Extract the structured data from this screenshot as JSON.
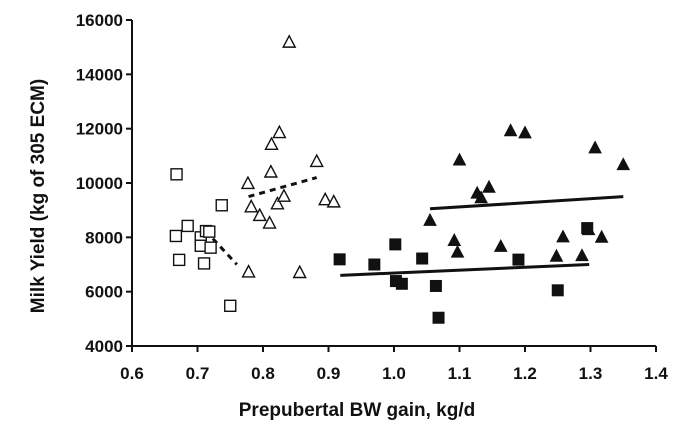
{
  "chart_data": {
    "type": "scatter",
    "title": "",
    "xlabel": "Prepubertal BW gain, kg/d",
    "ylabel": "Milk Yield (kg of 305 ECM)",
    "xlim": [
      0.6,
      1.4
    ],
    "ylim": [
      4000,
      16000
    ],
    "x_ticks": [
      0.6,
      0.7,
      0.8,
      0.9,
      1.0,
      1.1,
      1.2,
      1.3,
      1.4
    ],
    "x_tick_labels": [
      "0.6",
      "0.7",
      "0.8",
      "0.9",
      "1.0",
      "1.1",
      "1.2",
      "1.3",
      "1.4"
    ],
    "y_ticks": [
      4000,
      6000,
      8000,
      10000,
      12000,
      14000,
      16000
    ],
    "y_tick_labels": [
      "4000",
      "6000",
      "8000",
      "10000",
      "12000",
      "14000",
      "16000"
    ],
    "grid": false,
    "legend": "none",
    "color": "#111111",
    "series": [
      {
        "marker": "open-square",
        "points": [
          {
            "x": 0.668,
            "y": 10320
          },
          {
            "x": 0.667,
            "y": 8050
          },
          {
            "x": 0.672,
            "y": 7170
          },
          {
            "x": 0.685,
            "y": 8420
          },
          {
            "x": 0.705,
            "y": 8000
          },
          {
            "x": 0.705,
            "y": 7690
          },
          {
            "x": 0.71,
            "y": 7040
          },
          {
            "x": 0.713,
            "y": 8230
          },
          {
            "x": 0.718,
            "y": 8210
          },
          {
            "x": 0.72,
            "y": 7620
          },
          {
            "x": 0.737,
            "y": 9180
          },
          {
            "x": 0.75,
            "y": 5480
          }
        ]
      },
      {
        "marker": "open-triangle",
        "points": [
          {
            "x": 0.777,
            "y": 9980
          },
          {
            "x": 0.778,
            "y": 6720
          },
          {
            "x": 0.782,
            "y": 9120
          },
          {
            "x": 0.795,
            "y": 8800
          },
          {
            "x": 0.81,
            "y": 8520
          },
          {
            "x": 0.812,
            "y": 10400
          },
          {
            "x": 0.813,
            "y": 11420
          },
          {
            "x": 0.822,
            "y": 9230
          },
          {
            "x": 0.825,
            "y": 11850
          },
          {
            "x": 0.832,
            "y": 9510
          },
          {
            "x": 0.84,
            "y": 15180
          },
          {
            "x": 0.856,
            "y": 6700
          },
          {
            "x": 0.882,
            "y": 10790
          },
          {
            "x": 0.895,
            "y": 9380
          },
          {
            "x": 0.908,
            "y": 9300
          }
        ]
      },
      {
        "marker": "filled-square",
        "points": [
          {
            "x": 0.917,
            "y": 7190
          },
          {
            "x": 0.97,
            "y": 7000
          },
          {
            "x": 1.002,
            "y": 7740
          },
          {
            "x": 1.003,
            "y": 6390
          },
          {
            "x": 1.012,
            "y": 6290
          },
          {
            "x": 1.043,
            "y": 7220
          },
          {
            "x": 1.064,
            "y": 6210
          },
          {
            "x": 1.068,
            "y": 5040
          },
          {
            "x": 1.19,
            "y": 7180
          },
          {
            "x": 1.25,
            "y": 6050
          },
          {
            "x": 1.295,
            "y": 8340
          }
        ]
      },
      {
        "marker": "filled-triangle",
        "points": [
          {
            "x": 1.055,
            "y": 8620
          },
          {
            "x": 1.092,
            "y": 7880
          },
          {
            "x": 1.097,
            "y": 7450
          },
          {
            "x": 1.1,
            "y": 10840
          },
          {
            "x": 1.127,
            "y": 9620
          },
          {
            "x": 1.133,
            "y": 9450
          },
          {
            "x": 1.145,
            "y": 9840
          },
          {
            "x": 1.163,
            "y": 7660
          },
          {
            "x": 1.178,
            "y": 11920
          },
          {
            "x": 1.2,
            "y": 11840
          },
          {
            "x": 1.248,
            "y": 7300
          },
          {
            "x": 1.258,
            "y": 8010
          },
          {
            "x": 1.287,
            "y": 7320
          },
          {
            "x": 1.297,
            "y": 8280
          },
          {
            "x": 1.307,
            "y": 11290
          },
          {
            "x": 1.317,
            "y": 8000
          },
          {
            "x": 1.35,
            "y": 10670
          }
        ]
      }
    ],
    "trend_lines": [
      {
        "style": "dashed",
        "from": {
          "x": 0.712,
          "y": 8250
        },
        "to": {
          "x": 0.76,
          "y": 7000
        }
      },
      {
        "style": "dashed",
        "from": {
          "x": 0.778,
          "y": 9500
        },
        "to": {
          "x": 0.882,
          "y": 10200
        }
      },
      {
        "style": "solid",
        "from": {
          "x": 0.918,
          "y": 6600
        },
        "to": {
          "x": 1.298,
          "y": 7000
        }
      },
      {
        "style": "solid",
        "from": {
          "x": 1.055,
          "y": 9050
        },
        "to": {
          "x": 1.35,
          "y": 9500
        }
      }
    ]
  }
}
